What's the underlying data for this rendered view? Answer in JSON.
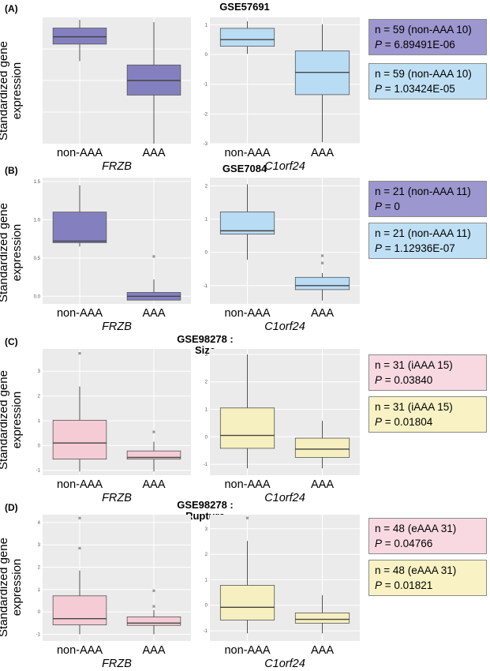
{
  "panels": [
    {
      "label": "(A)",
      "title": "GSE57691",
      "title2": "",
      "ylabel_line1": "Standardized gene",
      "ylabel_line2": "expression",
      "stats": [
        {
          "n_label": "n = ",
          "n": "59",
          "detail": "(non-AAA 10)",
          "p_label": "P",
          "p_value": "= 6.89491E-06",
          "color": "#9c97cf"
        },
        {
          "n_label": "n = ",
          "n": "59",
          "detail": "(non-AAA 10)",
          "p_label": "P",
          "p_value": "= 1.03424E-05",
          "color": "#bfe0f4"
        }
      ]
    },
    {
      "label": "(B)",
      "title": "GSE7084",
      "title2": "",
      "ylabel_line1": "Standardized gene",
      "ylabel_line2": "expression",
      "stats": [
        {
          "n_label": "n = ",
          "n": "21",
          "detail": "(non-AAA 11)",
          "p_label": "P",
          "p_value": "= 0",
          "color": "#9c97cf"
        },
        {
          "n_label": "n = ",
          "n": "21",
          "detail": "(non-AAA 11)",
          "p_label": "P",
          "p_value": "= 1.12936E-07",
          "color": "#bfe0f4"
        }
      ]
    },
    {
      "label": "(C)",
      "title": "GSE98278 :",
      "title2": "Size",
      "ylabel_line1": "Standardized gene",
      "ylabel_line2": "expression",
      "stats": [
        {
          "n_label": "n = ",
          "n": "31",
          "detail": "(iAAA 15)",
          "p_label": "P",
          "p_value": "= 0.03840",
          "color": "#f8d9e2"
        },
        {
          "n_label": "n = ",
          "n": "31",
          "detail": "(iAAA 15)",
          "p_label": "P",
          "p_value": "= 0.01804",
          "color": "#f8f2c4"
        }
      ]
    },
    {
      "label": "(D)",
      "title": "GSE98278 :",
      "title2": "Rupture",
      "ylabel_line1": "Standardized gene",
      "ylabel_line2": "expression",
      "stats": [
        {
          "n_label": "n = ",
          "n": "48",
          "detail": "(eAAA 31)",
          "p_label": "P",
          "p_value": "= 0.04766",
          "color": "#f8d9e2"
        },
        {
          "n_label": "n = ",
          "n": "48",
          "detail": "(eAAA 31)",
          "p_label": "P",
          "p_value": "= 0.01821",
          "color": "#f8f2c4"
        }
      ]
    }
  ],
  "chart_data": [
    {
      "type": "box",
      "panel": "A",
      "xlabel": "FRZB",
      "categories": [
        "non-AAA",
        "AAA"
      ],
      "ylim": [
        -1.0,
        1.6
      ],
      "yticks": [],
      "fill": "#8480c0",
      "boxes": [
        {
          "whisker_low": 0.7,
          "q1": 1.05,
          "median": 1.2,
          "q3": 1.38,
          "whisker_high": 1.55,
          "outliers": []
        },
        {
          "whisker_low": -1.0,
          "q1": 0.0,
          "median": 0.3,
          "q3": 0.62,
          "whisker_high": 1.5,
          "outliers": []
        }
      ]
    },
    {
      "type": "box",
      "panel": "A",
      "xlabel": "C1orf24",
      "categories": [
        "non-AAA",
        "AAA"
      ],
      "ylim": [
        -3.0,
        1.25
      ],
      "yticks": [
        1,
        0,
        -1,
        -2,
        -3
      ],
      "fill": "#b8dcf3",
      "boxes": [
        {
          "whisker_low": 0.02,
          "q1": 0.28,
          "median": 0.5,
          "q3": 0.88,
          "whisker_high": 1.12,
          "outliers": []
        },
        {
          "whisker_low": -2.95,
          "q1": -1.35,
          "median": -0.6,
          "q3": 0.12,
          "whisker_high": 1.02,
          "outliers": []
        }
      ]
    },
    {
      "type": "box",
      "panel": "B",
      "xlabel": "FRZB",
      "categories": [
        "non-AAA",
        "AAA"
      ],
      "ylim": [
        -0.1,
        1.55
      ],
      "yticks": [
        1.5,
        1.0,
        0.5,
        0.0
      ],
      "fill": "#8480c0",
      "boxes": [
        {
          "whisker_low": 0.65,
          "q1": 0.7,
          "median": 0.72,
          "q3": 1.1,
          "whisker_high": 1.45,
          "outliers": []
        },
        {
          "whisker_low": -0.05,
          "q1": -0.05,
          "median": 0.0,
          "q3": 0.05,
          "whisker_high": 0.22,
          "outliers": [
            0.52
          ]
        }
      ]
    },
    {
      "type": "box",
      "panel": "B",
      "xlabel": "C1orf24",
      "categories": [
        "non-AAA",
        "AAA"
      ],
      "ylim": [
        -1.55,
        2.25
      ],
      "yticks": [
        2,
        1,
        0,
        -1
      ],
      "fill": "#b8dcf3",
      "boxes": [
        {
          "whisker_low": -0.22,
          "q1": 0.55,
          "median": 0.65,
          "q3": 1.22,
          "whisker_high": 2.05,
          "outliers": []
        },
        {
          "whisker_low": -1.45,
          "q1": -1.12,
          "median": -1.0,
          "q3": -0.75,
          "whisker_high": -0.62,
          "outliers": [
            -0.1,
            -0.32
          ]
        }
      ]
    },
    {
      "type": "box",
      "panel": "C",
      "xlabel": "FRZB",
      "categories": [
        "non-AAA",
        "AAA"
      ],
      "ylim": [
        -1.2,
        3.9
      ],
      "yticks": [
        3,
        2,
        1,
        0,
        -1
      ],
      "fill": "#f5ccd6",
      "boxes": [
        {
          "whisker_low": -1.05,
          "q1": -0.55,
          "median": 0.1,
          "q3": 1.02,
          "whisker_high": 2.38,
          "outliers": [
            3.72
          ]
        },
        {
          "whisker_low": -1.05,
          "q1": -0.55,
          "median": -0.48,
          "q3": -0.22,
          "whisker_high": 0.15,
          "outliers": [
            0.55
          ]
        }
      ]
    },
    {
      "type": "box",
      "panel": "C",
      "xlabel": "C1orf24",
      "categories": [
        "non-AAA",
        "AAA"
      ],
      "ylim": [
        -1.4,
        3.2
      ],
      "yticks": [
        3,
        2,
        1,
        0,
        -1
      ],
      "fill": "#f6efbf",
      "boxes": [
        {
          "whisker_low": -1.15,
          "q1": -0.42,
          "median": 0.05,
          "q3": 1.05,
          "whisker_high": 3.0,
          "outliers": []
        },
        {
          "whisker_low": -1.15,
          "q1": -0.75,
          "median": -0.45,
          "q3": -0.05,
          "whisker_high": 0.58,
          "outliers": []
        }
      ]
    },
    {
      "type": "box",
      "panel": "D",
      "xlabel": "FRZB",
      "categories": [
        "non-AAA",
        "AAA"
      ],
      "ylim": [
        -1.3,
        4.35
      ],
      "yticks": [
        4,
        3,
        2,
        1,
        0,
        -1
      ],
      "fill": "#f5ccd6",
      "boxes": [
        {
          "whisker_low": -1.0,
          "q1": -0.58,
          "median": -0.3,
          "q3": 0.72,
          "whisker_high": 1.85,
          "outliers": [
            4.2,
            2.85
          ]
        },
        {
          "whisker_low": -1.0,
          "q1": -0.6,
          "median": -0.5,
          "q3": -0.22,
          "whisker_high": 0.08,
          "outliers": [
            0.95,
            0.25
          ]
        }
      ]
    },
    {
      "type": "box",
      "panel": "D",
      "xlabel": "C1orf24",
      "categories": [
        "non-AAA",
        "AAA"
      ],
      "ylim": [
        -1.4,
        3.55
      ],
      "yticks": [
        3,
        2,
        1,
        0,
        -1
      ],
      "fill": "#f6efbf",
      "boxes": [
        {
          "whisker_low": -1.1,
          "q1": -0.58,
          "median": -0.08,
          "q3": 0.78,
          "whisker_high": 2.52,
          "outliers": [
            3.42
          ]
        },
        {
          "whisker_low": -1.1,
          "q1": -0.7,
          "median": -0.55,
          "q3": -0.3,
          "whisker_high": 0.4,
          "outliers": []
        }
      ]
    }
  ]
}
